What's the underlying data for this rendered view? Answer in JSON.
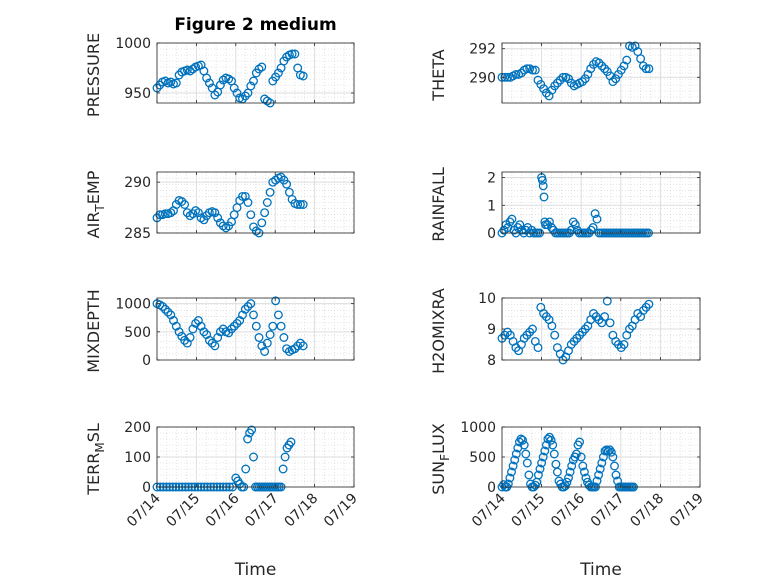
{
  "chart_data": [
    {
      "type": "scatter",
      "title": "Figure 2 medium",
      "ylabel": "PRESSURE",
      "ylim": [
        940,
        1000
      ],
      "yticks": [
        950,
        1000
      ],
      "xlim": [
        "07/14",
        "07/19"
      ],
      "xticks": [
        "07/14",
        "07/15",
        "07/16",
        "07/17",
        "07/18",
        "07/19"
      ],
      "show_xticklabels": false,
      "grid": true,
      "color": "#0072BD",
      "x": [
        14.0,
        14.07,
        14.14,
        14.21,
        14.28,
        14.35,
        14.42,
        14.49,
        14.56,
        14.63,
        14.7,
        14.77,
        14.84,
        14.91,
        14.98,
        15.05,
        15.12,
        15.19,
        15.26,
        15.33,
        15.4,
        15.47,
        15.54,
        15.61,
        15.68,
        15.75,
        15.82,
        15.89,
        15.96,
        16.03,
        16.1,
        16.17,
        16.24,
        16.31,
        16.38,
        16.45,
        16.52,
        16.59,
        16.66,
        16.73,
        16.8,
        16.87,
        16.94,
        17.01,
        17.08,
        17.15,
        17.22,
        17.29,
        17.36,
        17.43,
        17.5,
        17.57,
        17.64,
        17.71
      ],
      "y": [
        955,
        958,
        961,
        962,
        960,
        961,
        959,
        960,
        968,
        971,
        972,
        973,
        972,
        974,
        976,
        977,
        978,
        972,
        965,
        960,
        955,
        948,
        951,
        958,
        963,
        965,
        964,
        962,
        955,
        950,
        945,
        944,
        947,
        950,
        957,
        962,
        970,
        974,
        976,
        944,
        942,
        940,
        962,
        966,
        970,
        975,
        982,
        986,
        988,
        989,
        989,
        975,
        968,
        967
      ]
    },
    {
      "type": "scatter",
      "ylabel": "THETA",
      "ylim": [
        288.2,
        292.4
      ],
      "yticks": [
        290,
        292
      ],
      "xlim": [
        "07/14",
        "07/19"
      ],
      "xticks": [
        "07/14",
        "07/15",
        "07/16",
        "07/17",
        "07/18",
        "07/19"
      ],
      "show_xticklabels": false,
      "grid": true,
      "color": "#0072BD",
      "x": [
        14.0,
        14.07,
        14.14,
        14.21,
        14.28,
        14.35,
        14.42,
        14.49,
        14.56,
        14.63,
        14.7,
        14.77,
        14.84,
        14.91,
        14.98,
        15.05,
        15.12,
        15.19,
        15.26,
        15.33,
        15.4,
        15.47,
        15.54,
        15.61,
        15.68,
        15.75,
        15.82,
        15.89,
        15.96,
        16.03,
        16.1,
        16.17,
        16.24,
        16.31,
        16.38,
        16.45,
        16.52,
        16.59,
        16.66,
        16.73,
        16.8,
        16.87,
        16.94,
        17.01,
        17.08,
        17.15,
        17.22,
        17.29,
        17.36,
        17.43,
        17.5,
        17.57,
        17.64,
        17.71
      ],
      "y": [
        290.0,
        290.0,
        290.0,
        290.0,
        290.1,
        290.2,
        290.2,
        290.3,
        290.5,
        290.6,
        290.6,
        290.5,
        290.5,
        289.8,
        289.5,
        289.2,
        288.9,
        288.7,
        289.1,
        289.4,
        289.6,
        289.8,
        290.0,
        290.0,
        289.9,
        289.6,
        289.4,
        289.5,
        289.6,
        289.7,
        289.9,
        290.2,
        290.6,
        290.9,
        291.1,
        291.0,
        290.8,
        290.6,
        290.4,
        290.1,
        289.7,
        289.9,
        290.2,
        290.5,
        290.8,
        291.2,
        292.2,
        292.1,
        292.2,
        291.8,
        291.3,
        290.8,
        290.6,
        290.6
      ]
    },
    {
      "type": "scatter",
      "ylabel": "AIR_TEMP",
      "ylim": [
        285,
        291
      ],
      "yticks": [
        285,
        290
      ],
      "xlim": [
        "07/14",
        "07/19"
      ],
      "xticks": [
        "07/14",
        "07/15",
        "07/16",
        "07/17",
        "07/18",
        "07/19"
      ],
      "show_xticklabels": false,
      "grid": true,
      "color": "#0072BD",
      "x": [
        14.0,
        14.07,
        14.14,
        14.21,
        14.28,
        14.35,
        14.42,
        14.49,
        14.56,
        14.63,
        14.7,
        14.77,
        14.84,
        14.91,
        14.98,
        15.05,
        15.12,
        15.19,
        15.26,
        15.33,
        15.4,
        15.47,
        15.54,
        15.61,
        15.68,
        15.75,
        15.82,
        15.89,
        15.96,
        16.03,
        16.1,
        16.17,
        16.24,
        16.31,
        16.38,
        16.45,
        16.52,
        16.59,
        16.66,
        16.73,
        16.8,
        16.87,
        16.94,
        17.01,
        17.08,
        17.15,
        17.22,
        17.29,
        17.36,
        17.43,
        17.5,
        17.57,
        17.64,
        17.71
      ],
      "y": [
        286.5,
        286.8,
        286.8,
        286.9,
        286.9,
        287.0,
        287.2,
        287.8,
        288.2,
        288.1,
        287.8,
        287.0,
        286.7,
        286.9,
        287.2,
        287.0,
        286.5,
        286.3,
        286.7,
        287.0,
        287.1,
        287.0,
        286.5,
        286.0,
        285.7,
        285.5,
        285.7,
        286.1,
        286.8,
        287.5,
        288.2,
        288.6,
        288.6,
        288.0,
        286.8,
        285.6,
        285.2,
        285.0,
        286.0,
        287.0,
        288.0,
        289.0,
        290.0,
        290.2,
        290.4,
        290.5,
        290.2,
        289.8,
        289.0,
        288.3,
        287.9,
        287.8,
        287.8,
        287.8
      ]
    },
    {
      "type": "scatter",
      "ylabel": "RAINFALL",
      "ylim": [
        0,
        2.2
      ],
      "yticks": [
        0,
        1,
        2
      ],
      "xlim": [
        "07/14",
        "07/19"
      ],
      "xticks": [
        "07/14",
        "07/15",
        "07/16",
        "07/17",
        "07/18",
        "07/19"
      ],
      "show_xticklabels": false,
      "grid": true,
      "color": "#0072BD",
      "x": [
        14.0,
        14.05,
        14.1,
        14.15,
        14.2,
        14.25,
        14.3,
        14.35,
        14.4,
        14.45,
        14.5,
        14.55,
        14.6,
        14.65,
        14.7,
        14.75,
        14.8,
        14.85,
        14.9,
        14.95,
        15.0,
        15.02,
        15.04,
        15.06,
        15.08,
        15.1,
        15.15,
        15.2,
        15.25,
        15.3,
        15.35,
        15.4,
        15.45,
        15.5,
        15.55,
        15.6,
        15.65,
        15.7,
        15.75,
        15.8,
        15.85,
        15.9,
        15.95,
        16.0,
        16.05,
        16.1,
        16.15,
        16.2,
        16.25,
        16.3,
        16.35,
        16.4,
        16.45,
        16.5,
        16.55,
        16.6,
        16.65,
        16.7,
        16.75,
        16.8,
        16.85,
        16.9,
        16.95,
        17.0,
        17.05,
        17.1,
        17.15,
        17.2,
        17.25,
        17.3,
        17.35,
        17.4,
        17.45,
        17.5,
        17.55,
        17.6,
        17.65,
        17.7
      ],
      "y": [
        0,
        0.1,
        0.3,
        0.2,
        0.4,
        0.5,
        0.1,
        0,
        0.2,
        0.3,
        0.1,
        0,
        0.1,
        0.2,
        0,
        0.1,
        0,
        0,
        0,
        0,
        2.0,
        1.9,
        1.7,
        1.3,
        0.4,
        0.3,
        0.3,
        0.4,
        0.2,
        0.1,
        0,
        0,
        0,
        0,
        0,
        0,
        0,
        0,
        0.1,
        0.4,
        0.3,
        0.1,
        0,
        0,
        0,
        0,
        0,
        0,
        0.1,
        0.2,
        0.7,
        0.5,
        0,
        0,
        0,
        0,
        0,
        0,
        0,
        0,
        0,
        0,
        0,
        0,
        0,
        0,
        0,
        0,
        0,
        0,
        0,
        0,
        0,
        0,
        0,
        0,
        0,
        0
      ]
    },
    {
      "type": "scatter",
      "ylabel": "MIXDEPTH",
      "ylim": [
        0,
        1100
      ],
      "yticks": [
        0,
        500,
        1000
      ],
      "xlim": [
        "07/14",
        "07/19"
      ],
      "xticks": [
        "07/14",
        "07/15",
        "07/16",
        "07/17",
        "07/18",
        "07/19"
      ],
      "show_xticklabels": false,
      "grid": true,
      "color": "#0072BD",
      "x": [
        14.0,
        14.07,
        14.14,
        14.21,
        14.28,
        14.35,
        14.42,
        14.49,
        14.56,
        14.63,
        14.7,
        14.77,
        14.84,
        14.91,
        14.98,
        15.05,
        15.12,
        15.19,
        15.26,
        15.33,
        15.4,
        15.47,
        15.54,
        15.61,
        15.68,
        15.75,
        15.82,
        15.89,
        15.96,
        16.03,
        16.1,
        16.17,
        16.24,
        16.31,
        16.38,
        16.45,
        16.52,
        16.59,
        16.66,
        16.73,
        16.8,
        16.87,
        16.94,
        17.01,
        17.08,
        17.15,
        17.22,
        17.29,
        17.36,
        17.43,
        17.5,
        17.57,
        17.64,
        17.71
      ],
      "y": [
        1000,
        980,
        950,
        900,
        850,
        800,
        700,
        600,
        500,
        420,
        350,
        300,
        400,
        550,
        650,
        700,
        600,
        500,
        450,
        350,
        300,
        250,
        400,
        500,
        550,
        500,
        480,
        550,
        600,
        650,
        700,
        800,
        900,
        950,
        1000,
        800,
        600,
        400,
        250,
        150,
        300,
        450,
        600,
        1050,
        800,
        600,
        400,
        200,
        150,
        180,
        200,
        250,
        300,
        250
      ]
    },
    {
      "type": "scatter",
      "ylabel": "H2OMIXRA",
      "ylim": [
        8,
        10
      ],
      "yticks": [
        8,
        9,
        10
      ],
      "xlim": [
        "07/14",
        "07/19"
      ],
      "xticks": [
        "07/14",
        "07/15",
        "07/16",
        "07/17",
        "07/18",
        "07/19"
      ],
      "show_xticklabels": false,
      "grid": true,
      "color": "#0072BD",
      "x": [
        14.0,
        14.07,
        14.14,
        14.21,
        14.28,
        14.35,
        14.42,
        14.49,
        14.56,
        14.63,
        14.7,
        14.77,
        14.84,
        14.91,
        14.98,
        15.05,
        15.12,
        15.19,
        15.26,
        15.33,
        15.4,
        15.47,
        15.54,
        15.61,
        15.68,
        15.75,
        15.82,
        15.89,
        15.96,
        16.03,
        16.1,
        16.17,
        16.24,
        16.31,
        16.38,
        16.45,
        16.52,
        16.59,
        16.66,
        16.73,
        16.8,
        16.87,
        16.94,
        17.01,
        17.08,
        17.15,
        17.22,
        17.29,
        17.36,
        17.43,
        17.5,
        17.57,
        17.64,
        17.71
      ],
      "y": [
        8.7,
        8.8,
        8.9,
        8.8,
        8.6,
        8.4,
        8.3,
        8.5,
        8.7,
        8.8,
        8.9,
        9.0,
        8.6,
        8.4,
        9.7,
        9.5,
        9.4,
        9.3,
        9.1,
        8.8,
        8.4,
        8.2,
        8.0,
        8.1,
        8.3,
        8.5,
        8.6,
        8.7,
        8.8,
        8.9,
        9.0,
        9.1,
        9.3,
        9.5,
        9.4,
        9.3,
        9.2,
        9.4,
        9.9,
        9.2,
        8.8,
        8.6,
        8.5,
        8.4,
        8.5,
        8.8,
        9.0,
        9.1,
        9.3,
        9.5,
        9.4,
        9.6,
        9.7,
        9.8
      ]
    },
    {
      "type": "scatter",
      "ylabel": "TERR_MSL",
      "ylim": [
        0,
        200
      ],
      "yticks": [
        0,
        100,
        200
      ],
      "xlim": [
        "07/14",
        "07/19"
      ],
      "xticks": [
        "07/14",
        "07/15",
        "07/16",
        "07/17",
        "07/18",
        "07/19"
      ],
      "show_xticklabels": true,
      "xlabel": "Time",
      "grid": true,
      "color": "#0072BD",
      "x": [
        14.0,
        14.08,
        14.16,
        14.24,
        14.32,
        14.4,
        14.48,
        14.56,
        14.64,
        14.72,
        14.8,
        14.88,
        14.96,
        15.04,
        15.12,
        15.2,
        15.28,
        15.36,
        15.44,
        15.52,
        15.6,
        15.68,
        15.76,
        15.84,
        15.92,
        16.0,
        16.05,
        16.1,
        16.15,
        16.2,
        16.25,
        16.3,
        16.35,
        16.4,
        16.45,
        16.5,
        16.55,
        16.6,
        16.65,
        16.7,
        16.75,
        16.8,
        16.85,
        16.9,
        16.95,
        17.0,
        17.05,
        17.1,
        17.15,
        17.2,
        17.25,
        17.3,
        17.35,
        17.4
      ],
      "y": [
        0,
        0,
        0,
        0,
        0,
        0,
        0,
        0,
        0,
        0,
        0,
        0,
        0,
        0,
        0,
        0,
        0,
        0,
        0,
        0,
        0,
        0,
        0,
        0,
        0,
        30,
        20,
        10,
        0,
        0,
        60,
        160,
        180,
        190,
        100,
        0,
        0,
        0,
        0,
        0,
        0,
        0,
        0,
        0,
        0,
        0,
        0,
        0,
        0,
        60,
        100,
        130,
        140,
        150
      ]
    },
    {
      "type": "scatter",
      "ylabel": "SUN_FLUX",
      "ylim": [
        0,
        1000
      ],
      "yticks": [
        0,
        500,
        1000
      ],
      "xlim": [
        "07/14",
        "07/19"
      ],
      "xticks": [
        "07/14",
        "07/15",
        "07/16",
        "07/17",
        "07/18",
        "07/19"
      ],
      "show_xticklabels": true,
      "xlabel": "Time",
      "grid": true,
      "color": "#0072BD",
      "x": [
        14.0,
        14.04,
        14.08,
        14.12,
        14.16,
        14.2,
        14.24,
        14.28,
        14.32,
        14.36,
        14.4,
        14.44,
        14.48,
        14.52,
        14.56,
        14.6,
        14.64,
        14.68,
        14.72,
        14.76,
        14.8,
        14.84,
        14.88,
        14.92,
        14.96,
        15.0,
        15.04,
        15.08,
        15.12,
        15.16,
        15.2,
        15.24,
        15.28,
        15.32,
        15.36,
        15.4,
        15.44,
        15.48,
        15.52,
        15.56,
        15.6,
        15.64,
        15.68,
        15.72,
        15.76,
        15.8,
        15.84,
        15.88,
        15.92,
        15.96,
        16.0,
        16.04,
        16.08,
        16.12,
        16.16,
        16.2,
        16.24,
        16.28,
        16.32,
        16.36,
        16.4,
        16.44,
        16.48,
        16.52,
        16.56,
        16.6,
        16.64,
        16.68,
        16.72,
        16.76,
        16.8,
        16.84,
        16.88,
        16.92,
        16.96,
        17.0,
        17.04,
        17.08,
        17.12,
        17.16,
        17.2,
        17.24,
        17.28,
        17.32
      ],
      "y": [
        0,
        40,
        0,
        0,
        50,
        150,
        250,
        350,
        450,
        550,
        650,
        750,
        800,
        780,
        700,
        550,
        400,
        200,
        50,
        0,
        0,
        30,
        80,
        200,
        300,
        400,
        500,
        600,
        700,
        800,
        830,
        780,
        700,
        550,
        380,
        250,
        100,
        50,
        0,
        0,
        20,
        80,
        150,
        250,
        350,
        450,
        500,
        550,
        700,
        750,
        500,
        350,
        250,
        150,
        80,
        30,
        0,
        0,
        0,
        0,
        100,
        200,
        300,
        400,
        500,
        600,
        620,
        600,
        620,
        580,
        500,
        350,
        200,
        100,
        0,
        0,
        0,
        0,
        0,
        0,
        0,
        0,
        0,
        0
      ]
    }
  ]
}
